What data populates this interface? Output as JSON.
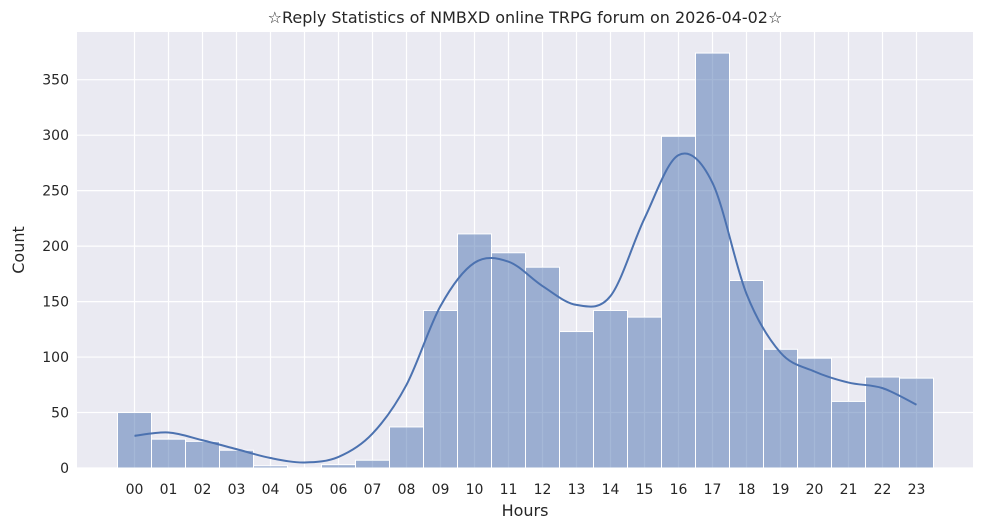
{
  "chart_data": {
    "type": "bar",
    "title": "☆Reply Statistics of NMBXD online TRPG forum on 2026-04-02☆",
    "xlabel": "Hours",
    "ylabel": "Count",
    "categories": [
      "00",
      "01",
      "02",
      "03",
      "04",
      "05",
      "06",
      "07",
      "08",
      "09",
      "10",
      "11",
      "12",
      "13",
      "14",
      "15",
      "16",
      "17",
      "18",
      "19",
      "20",
      "21",
      "22",
      "23"
    ],
    "values": [
      50,
      26,
      24,
      16,
      2,
      0,
      3,
      7,
      37,
      142,
      211,
      194,
      181,
      123,
      142,
      136,
      299,
      374,
      169,
      107,
      99,
      60,
      82,
      81
    ],
    "kde": [
      29,
      32,
      25,
      17,
      9,
      5,
      10,
      31,
      75,
      146,
      185,
      186,
      164,
      147,
      155,
      225,
      282,
      257,
      157,
      104,
      87,
      77,
      72,
      57
    ],
    "ylim": [
      0,
      393
    ],
    "yticks": [
      0,
      50,
      100,
      150,
      200,
      250,
      300,
      350
    ],
    "grid": true,
    "colors": {
      "background": "#EAEAF2",
      "bar_fill": "#4C72B0",
      "bar_fill_opacity": 0.5,
      "line": "#4C72B0",
      "grid": "#FFFFFF"
    }
  }
}
